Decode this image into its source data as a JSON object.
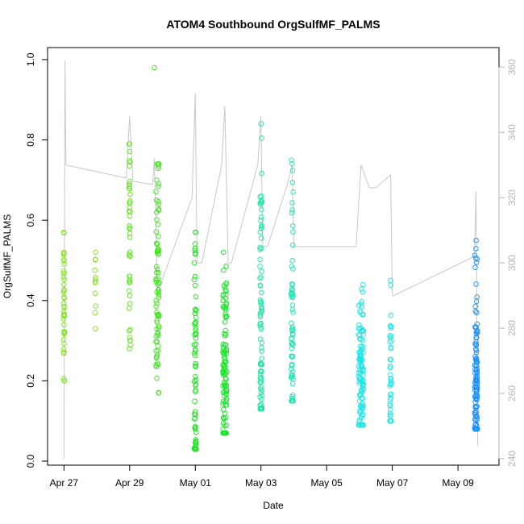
{
  "chart_data": {
    "type": "scatter",
    "title": "ATOM4 Southbound OrgSulfMF_PALMS",
    "xlabel": "Date",
    "ylabel": "OrgSulfMF_PALMS",
    "x_ticks": [
      "Apr 27",
      "Apr 29",
      "May 01",
      "May 03",
      "May 05",
      "May 07",
      "May 09"
    ],
    "x_tick_days": [
      0,
      2,
      4,
      6,
      8,
      10,
      12
    ],
    "xlim_days": [
      -0.5,
      13.25
    ],
    "y_ticks": [
      "0.0",
      "0.2",
      "0.4",
      "0.6",
      "0.8",
      "1.0"
    ],
    "ylim": [
      0,
      1.0
    ],
    "y2_ticks": [
      "240",
      "260",
      "280",
      "300",
      "320",
      "340",
      "360"
    ],
    "y2lim": [
      240,
      365
    ],
    "colors": {
      "yellowgreen": "#7fe619",
      "green_light": "#44f01a",
      "green": "#19e619",
      "teal": "#19e6a0",
      "cyan": "#19e6e6",
      "blue": "#1a8fff",
      "altitude_line": "#c8c8c8",
      "frame": "#000000"
    },
    "clusters": [
      {
        "day": 0.0,
        "spread": 0.03,
        "min": 0.2,
        "max": 0.57,
        "n": 40,
        "color": "#7fe619",
        "mean": 0.38
      },
      {
        "day": 0.95,
        "spread": 0.03,
        "min": 0.33,
        "max": 0.52,
        "n": 12,
        "color": "#7fe619",
        "mean": 0.4
      },
      {
        "day": 2.0,
        "spread": 0.04,
        "min": 0.28,
        "max": 0.79,
        "n": 45,
        "color": "#5ee81a",
        "mean": 0.58
      },
      {
        "day": 2.85,
        "spread": 0.1,
        "min": 0.17,
        "max": 0.74,
        "n": 80,
        "color": "#3ee619",
        "mean": 0.48
      },
      {
        "day": 4.0,
        "spread": 0.06,
        "min": 0.03,
        "max": 0.57,
        "n": 70,
        "color": "#19e619",
        "mean": 0.25
      },
      {
        "day": 4.9,
        "spread": 0.12,
        "min": 0.07,
        "max": 0.52,
        "n": 110,
        "color": "#19e62a",
        "mean": 0.22
      },
      {
        "day": 6.0,
        "spread": 0.06,
        "min": 0.13,
        "max": 0.84,
        "n": 90,
        "color": "#19e6a0",
        "mean": 0.25
      },
      {
        "day": 6.95,
        "spread": 0.06,
        "min": 0.15,
        "max": 0.75,
        "n": 70,
        "color": "#19e6b4",
        "mean": 0.24
      },
      {
        "day": 9.05,
        "spread": 0.15,
        "min": 0.09,
        "max": 0.44,
        "n": 110,
        "color": "#19e6e6",
        "mean": 0.2
      },
      {
        "day": 9.95,
        "spread": 0.05,
        "min": 0.1,
        "max": 0.45,
        "n": 40,
        "color": "#19e6e6",
        "mean": 0.18
      },
      {
        "day": 12.55,
        "spread": 0.08,
        "min": 0.08,
        "max": 0.55,
        "n": 120,
        "color": "#1a8fff",
        "mean": 0.19
      }
    ],
    "outliers": [
      {
        "day": 2.75,
        "y": 0.98,
        "color": "#3ee619"
      }
    ],
    "altitude_series": {
      "name": "",
      "points": [
        [
          0.0,
          240
        ],
        [
          0.03,
          362
        ],
        [
          0.06,
          330
        ],
        [
          1.9,
          326
        ],
        [
          2.0,
          345
        ],
        [
          2.1,
          325
        ],
        [
          2.7,
          324
        ],
        [
          2.75,
          332
        ],
        [
          2.85,
          290
        ],
        [
          3.0,
          295
        ],
        [
          3.9,
          320
        ],
        [
          4.0,
          352
        ],
        [
          4.05,
          300
        ],
        [
          4.2,
          300
        ],
        [
          4.8,
          330
        ],
        [
          4.9,
          348
        ],
        [
          5.0,
          300
        ],
        [
          5.1,
          300
        ],
        [
          5.9,
          330
        ],
        [
          6.0,
          345
        ],
        [
          6.05,
          305
        ],
        [
          6.2,
          305
        ],
        [
          6.8,
          324
        ],
        [
          6.95,
          330
        ],
        [
          7.0,
          305
        ],
        [
          8.9,
          305
        ],
        [
          9.0,
          322
        ],
        [
          9.05,
          330
        ],
        [
          9.3,
          323
        ],
        [
          9.5,
          323
        ],
        [
          9.95,
          327
        ],
        [
          10.0,
          290
        ],
        [
          10.05,
          290
        ],
        [
          12.5,
          302
        ],
        [
          12.55,
          322
        ],
        [
          12.6,
          244
        ]
      ]
    }
  }
}
